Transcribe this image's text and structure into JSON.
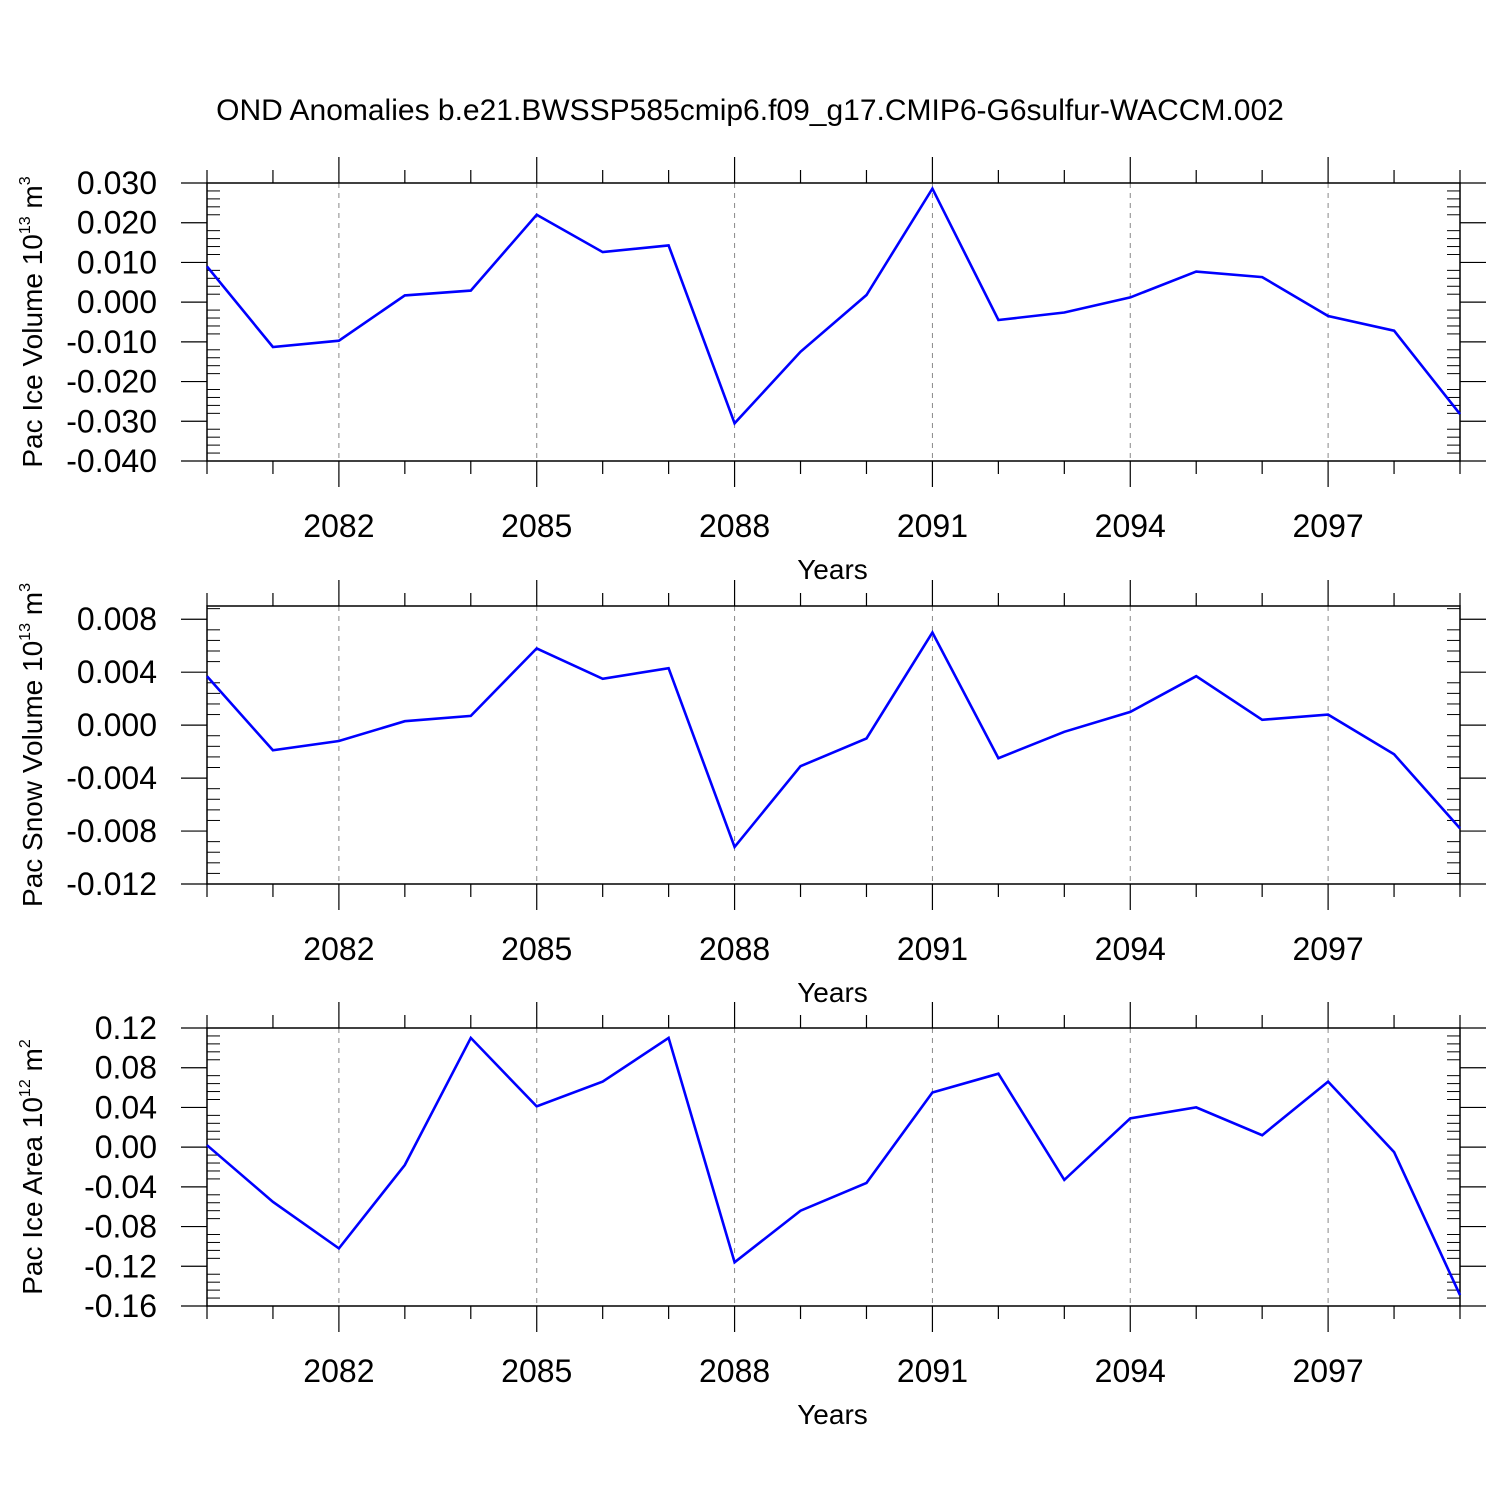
{
  "title": "OND Anomalies b.e21.BWSSP585cmip6.f09_g17.CMIP6-G6sulfur-WACCM.002",
  "line_color": "#0000ff",
  "chart_data": [
    {
      "type": "line",
      "ylabel_main": "Pac Ice Volume 10",
      "ylabel_exp": "13",
      "ylabel_unit": " m",
      "ylabel_unit_exp": "3",
      "xlabel": "Years",
      "xlim": [
        2080,
        2099
      ],
      "ylim": [
        -0.04,
        0.03
      ],
      "yticks": [
        0.03,
        0.02,
        0.01,
        0.0,
        -0.01,
        -0.02,
        -0.03,
        -0.04
      ],
      "ytick_labels": [
        "0.030",
        "0.020",
        "0.010",
        "0.000",
        "-0.010",
        "-0.020",
        "-0.030",
        "-0.040"
      ],
      "xticks": [
        2082,
        2085,
        2088,
        2091,
        2094,
        2097
      ],
      "xtick_labels": [
        "2082",
        "2085",
        "2088",
        "2091",
        "2094",
        "2097"
      ],
      "x": [
        2080,
        2081,
        2082,
        2083,
        2084,
        2085,
        2086,
        2087,
        2088,
        2089,
        2090,
        2091,
        2092,
        2093,
        2094,
        2095,
        2096,
        2097,
        2098,
        2099
      ],
      "values": [
        0.009,
        -0.0113,
        -0.0097,
        0.0017,
        0.0029,
        0.022,
        0.0126,
        0.0143,
        -0.0305,
        -0.0125,
        0.0018,
        0.0286,
        -0.0045,
        -0.0026,
        0.0012,
        0.0077,
        0.0063,
        -0.0035,
        -0.0072,
        -0.0282
      ]
    },
    {
      "type": "line",
      "ylabel_main": "Pac Snow Volume 10",
      "ylabel_exp": "13",
      "ylabel_unit": " m",
      "ylabel_unit_exp": "3",
      "xlabel": "Years",
      "xlim": [
        2080,
        2099
      ],
      "ylim": [
        -0.012,
        0.009
      ],
      "yticks": [
        0.008,
        0.004,
        0.0,
        -0.004,
        -0.008,
        -0.012
      ],
      "ytick_labels": [
        "0.008",
        "0.004",
        "0.000",
        "-0.004",
        "-0.008",
        "-0.012"
      ],
      "xticks": [
        2082,
        2085,
        2088,
        2091,
        2094,
        2097
      ],
      "xtick_labels": [
        "2082",
        "2085",
        "2088",
        "2091",
        "2094",
        "2097"
      ],
      "x": [
        2080,
        2081,
        2082,
        2083,
        2084,
        2085,
        2086,
        2087,
        2088,
        2089,
        2090,
        2091,
        2092,
        2093,
        2094,
        2095,
        2096,
        2097,
        2098,
        2099
      ],
      "values": [
        0.0037,
        -0.0019,
        -0.0012,
        0.0003,
        0.0007,
        0.0058,
        0.0035,
        0.0043,
        -0.0092,
        -0.0031,
        -0.001,
        0.007,
        -0.0025,
        -0.0005,
        0.001,
        0.0037,
        0.0004,
        0.0008,
        -0.0022,
        -0.0078
      ]
    },
    {
      "type": "line",
      "ylabel_main": "Pac Ice Area 10",
      "ylabel_exp": "12",
      "ylabel_unit": " m",
      "ylabel_unit_exp": "2",
      "xlabel": "Years",
      "xlim": [
        2080,
        2099
      ],
      "ylim": [
        -0.16,
        0.12
      ],
      "yticks": [
        0.12,
        0.08,
        0.04,
        0.0,
        -0.04,
        -0.08,
        -0.12,
        -0.16
      ],
      "ytick_labels": [
        "0.12",
        "0.08",
        "0.04",
        "0.00",
        "-0.04",
        "-0.08",
        "-0.12",
        "-0.16"
      ],
      "xticks": [
        2082,
        2085,
        2088,
        2091,
        2094,
        2097
      ],
      "xtick_labels": [
        "2082",
        "2085",
        "2088",
        "2091",
        "2094",
        "2097"
      ],
      "x": [
        2080,
        2081,
        2082,
        2083,
        2084,
        2085,
        2086,
        2087,
        2088,
        2089,
        2090,
        2091,
        2092,
        2093,
        2094,
        2095,
        2096,
        2097,
        2098,
        2099
      ],
      "values": [
        0.002,
        -0.055,
        -0.102,
        -0.018,
        0.11,
        0.041,
        0.066,
        0.11,
        -0.116,
        -0.064,
        -0.036,
        0.055,
        0.074,
        -0.033,
        0.029,
        0.04,
        0.012,
        0.066,
        -0.005,
        -0.149
      ]
    }
  ]
}
